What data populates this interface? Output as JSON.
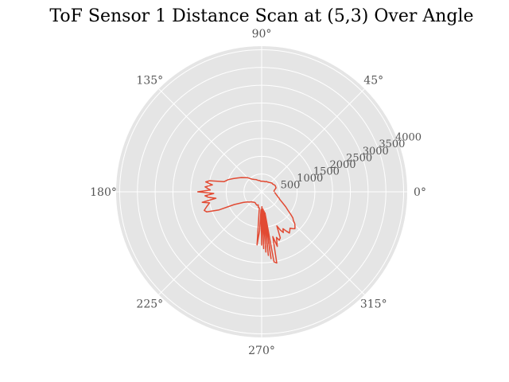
{
  "chart_data": {
    "type": "line",
    "projection": "polar",
    "title": "ToF Sensor 1 Distance Scan at (5,3) Over Angle",
    "xlabel": "",
    "ylabel": "",
    "theta_unit": "degrees",
    "theta_ticks": [
      "0°",
      "45°",
      "90°",
      "135°",
      "180°",
      "225°",
      "270°",
      "315°"
    ],
    "r_ticks": [
      "500",
      "1000",
      "1500",
      "2000",
      "2500",
      "3000",
      "3500",
      "4000"
    ],
    "rlim": [
      0,
      4100
    ],
    "grid": true,
    "colors": {
      "line": "#E24A33",
      "background": "#E5E5E5",
      "grid": "#FFFFFF"
    },
    "series": [
      {
        "theta": [
          0,
          5,
          10,
          15,
          20,
          25,
          30,
          35,
          40,
          45,
          50,
          55,
          60,
          65,
          70,
          75,
          80,
          85,
          90,
          95,
          100,
          105,
          110,
          115,
          120,
          125,
          130,
          135,
          140,
          145,
          150,
          155,
          160,
          165,
          168,
          170,
          172,
          175,
          178,
          180,
          182,
          184,
          186,
          188,
          190,
          192,
          195,
          198,
          200,
          203,
          205,
          210,
          215,
          220,
          225,
          230,
          235,
          240,
          245,
          250,
          255,
          258,
          262,
          265,
          267,
          268,
          270,
          271,
          272,
          273,
          274,
          275,
          276,
          277,
          278,
          279,
          280,
          282,
          284,
          286,
          288,
          290,
          292,
          294,
          296,
          298,
          300,
          302,
          304,
          306,
          308,
          310,
          312,
          314,
          316,
          318,
          320,
          322,
          325,
          328,
          331,
          334,
          337,
          340,
          343,
          346,
          349,
          352,
          355,
          358
        ],
        "r": [
          350,
          350,
          380,
          420,
          420,
          420,
          400,
          380,
          380,
          360,
          340,
          330,
          320,
          320,
          300,
          300,
          300,
          300,
          300,
          300,
          320,
          330,
          350,
          380,
          400,
          430,
          480,
          560,
          620,
          700,
          780,
          880,
          1000,
          1100,
          1500,
          1600,
          1400,
          1600,
          1450,
          1800,
          1350,
          1600,
          1500,
          1300,
          1700,
          1500,
          1600,
          1700,
          1650,
          1300,
          850,
          600,
          500,
          450,
          400,
          380,
          360,
          360,
          380,
          400,
          380,
          450,
          460,
          1500,
          1100,
          500,
          1500,
          420,
          1600,
          480,
          1700,
          500,
          1800,
          550,
          1900,
          600,
          2000,
          2050,
          1300,
          1600,
          1350,
          1450,
          1400,
          1050,
          1200,
          1300,
          1200,
          1300,
          1400,
          1350,
          1300,
          1350,
          1400,
          1350,
          1300,
          1200,
          1150,
          1050,
          900,
          800,
          700,
          620,
          560,
          520,
          480,
          450,
          420,
          400,
          380,
          360
        ]
      }
    ]
  }
}
